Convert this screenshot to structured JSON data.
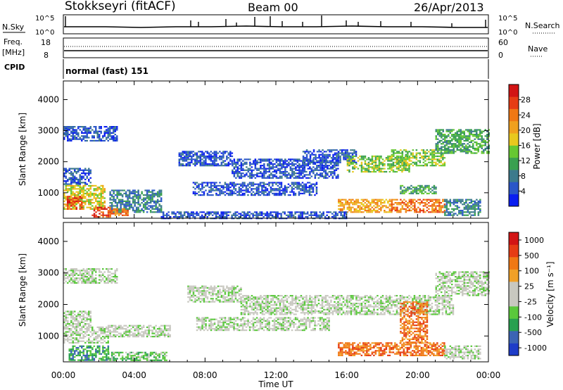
{
  "header": {
    "station": "Stokkseyri (fitACF)",
    "beam": "Beam 00",
    "date": "26/Apr/2013"
  },
  "top_panels": {
    "nsky_label": "N.Sky",
    "nsky_tick_top": "10^5",
    "nsky_tick_bottom": "10^0",
    "nsearch_label": "N.Search",
    "nsearch_tick_top": "10^5",
    "nsearch_tick_bottom": "10^0",
    "freq_label": "Freq.",
    "freq_unit": "[MHz]",
    "freq_tick_top": "18",
    "freq_tick_bottom": "8",
    "nave_label": "Nave",
    "nave_tick_top": "60",
    "nave_tick_bottom": "0",
    "cpid_label": "CPID",
    "cpid_value": "normal (fast) 151"
  },
  "chart_data": [
    {
      "type": "heatmap",
      "name": "power",
      "ylabel": "Slant Range [km]",
      "yticks": [
        "1000",
        "2000",
        "3000",
        "4000"
      ],
      "ylim": [
        180,
        4600
      ],
      "xlim": [
        0,
        24
      ],
      "colorbar_label": "Power [dB]",
      "colorbar_ticks": [
        "4",
        "8",
        "12",
        "16",
        "20",
        "24",
        "28"
      ],
      "colorbar_colors": [
        "#0a1ef0",
        "#2a56c8",
        "#3c7a8c",
        "#3aa050",
        "#66c832",
        "#e8c81e",
        "#f0a01e",
        "#f07814",
        "#e63c14",
        "#d21414"
      ],
      "bands": [
        {
          "t0": 0.0,
          "t1": 3.0,
          "r0": 2700,
          "r1": 3150,
          "level": 1
        },
        {
          "t0": 0.0,
          "t1": 1.5,
          "r0": 1300,
          "r1": 1800,
          "level": 1
        },
        {
          "t0": 0.0,
          "t1": 2.3,
          "r0": 500,
          "r1": 1250,
          "level": 5
        },
        {
          "t0": 0.2,
          "t1": 1.0,
          "r0": 500,
          "r1": 900,
          "level": 8
        },
        {
          "t0": 1.6,
          "t1": 2.6,
          "r0": 250,
          "r1": 550,
          "level": 8
        },
        {
          "t0": 2.6,
          "t1": 5.5,
          "r0": 400,
          "r1": 1100,
          "level": 2
        },
        {
          "t0": 2.6,
          "t1": 3.6,
          "r0": 300,
          "r1": 500,
          "level": 7
        },
        {
          "t0": 6.5,
          "t1": 9.5,
          "r0": 1900,
          "r1": 2350,
          "level": 1
        },
        {
          "t0": 7.3,
          "t1": 14.3,
          "r0": 950,
          "r1": 1350,
          "level": 1
        },
        {
          "t0": 9.5,
          "t1": 15.5,
          "r0": 1500,
          "r1": 2100,
          "level": 1
        },
        {
          "t0": 13.5,
          "t1": 16.5,
          "r0": 2000,
          "r1": 2400,
          "level": 1
        },
        {
          "t0": 16.0,
          "t1": 19.5,
          "r0": 1700,
          "r1": 2200,
          "level": 4
        },
        {
          "t0": 18.5,
          "t1": 21.5,
          "r0": 1900,
          "r1": 2400,
          "level": 4
        },
        {
          "t0": 21.0,
          "t1": 24.0,
          "r0": 2300,
          "r1": 3050,
          "level": 3
        },
        {
          "t0": 15.5,
          "t1": 18.5,
          "r0": 400,
          "r1": 800,
          "level": 6
        },
        {
          "t0": 18.5,
          "t1": 21.5,
          "r0": 400,
          "r1": 800,
          "level": 7
        },
        {
          "t0": 19.0,
          "t1": 21.0,
          "r0": 1000,
          "r1": 1250,
          "level": 3
        },
        {
          "t0": 21.5,
          "t1": 23.5,
          "r0": 300,
          "r1": 800,
          "level": 2
        },
        {
          "t0": 5.5,
          "t1": 16.0,
          "r0": 200,
          "r1": 400,
          "level": 1
        }
      ]
    },
    {
      "type": "heatmap",
      "name": "velocity",
      "ylabel": "Slant Range [km]",
      "yticks": [
        "1000",
        "2000",
        "3000",
        "4000"
      ],
      "ylim": [
        180,
        4600
      ],
      "xlim": [
        0,
        24
      ],
      "xticks": [
        "00:00",
        "04:00",
        "08:00",
        "12:00",
        "16:00",
        "20:00",
        "00:00"
      ],
      "xlabel": "Time UT",
      "colorbar_label": "Velocity [m s⁻¹]",
      "colorbar_ticks": [
        "1000",
        "500",
        "100",
        "25",
        "-25",
        "-100",
        "-500",
        "-1000"
      ],
      "colorbar_colors": [
        "#1e3cc8",
        "#3c64b4",
        "#28a050",
        "#5ac83c",
        "#c8c8c0",
        "#c8c8c0",
        "#f0a028",
        "#f07814",
        "#e63c14",
        "#d21414"
      ],
      "bands": [
        {
          "t0": 0.0,
          "t1": 3.0,
          "r0": 2700,
          "r1": 3150,
          "level": 4
        },
        {
          "t0": 0.0,
          "t1": 1.5,
          "r0": 1300,
          "r1": 1800,
          "level": 4
        },
        {
          "t0": 0.0,
          "t1": 2.5,
          "r0": 800,
          "r1": 1300,
          "level": 4
        },
        {
          "t0": 2.5,
          "t1": 6.0,
          "r0": 1000,
          "r1": 1350,
          "level": 4
        },
        {
          "t0": 0.3,
          "t1": 2.5,
          "r0": 250,
          "r1": 700,
          "level": 2
        },
        {
          "t0": 2.5,
          "t1": 5.8,
          "r0": 250,
          "r1": 500,
          "level": 3
        },
        {
          "t0": 7.0,
          "t1": 10.0,
          "r0": 2100,
          "r1": 2600,
          "level": 4
        },
        {
          "t0": 7.5,
          "t1": 15.0,
          "r0": 1200,
          "r1": 1600,
          "level": 4
        },
        {
          "t0": 10.0,
          "t1": 16.0,
          "r0": 1700,
          "r1": 2300,
          "level": 4
        },
        {
          "t0": 16.0,
          "t1": 22.0,
          "r0": 1700,
          "r1": 2300,
          "level": 4
        },
        {
          "t0": 21.0,
          "t1": 24.0,
          "r0": 2300,
          "r1": 3050,
          "level": 4
        },
        {
          "t0": 15.5,
          "t1": 21.5,
          "r0": 400,
          "r1": 800,
          "level": 7
        },
        {
          "t0": 19.0,
          "t1": 20.5,
          "r0": 800,
          "r1": 2100,
          "level": 7
        },
        {
          "t0": 21.5,
          "t1": 23.5,
          "r0": 300,
          "r1": 700,
          "level": 4
        }
      ]
    }
  ]
}
